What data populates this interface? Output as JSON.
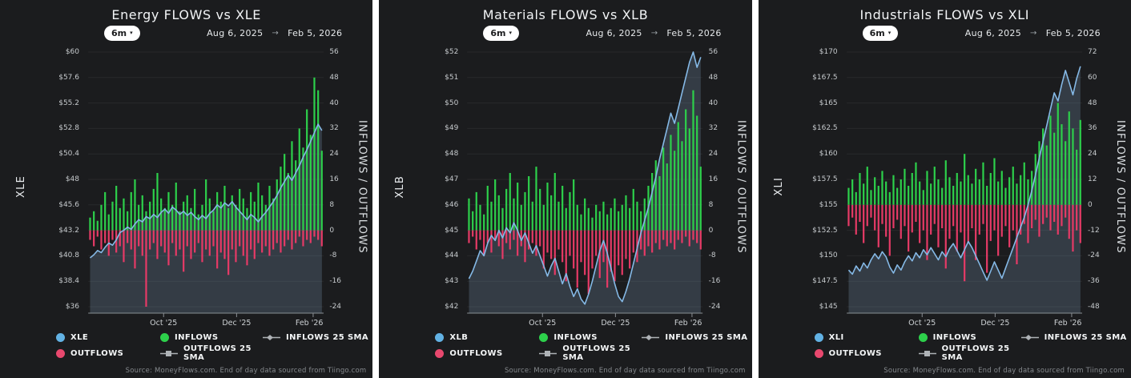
{
  "shared": {
    "range_label": "6m",
    "range_caret": "▾",
    "date_start": "Aug 6, 2025",
    "date_arrow": "→",
    "date_end": "Feb 5, 2026",
    "legend": {
      "inflows": "INFLOWS",
      "outflows": "OUTFLOWS",
      "inflows_sma": "INFLOWS 25 SMA",
      "outflows_sma": "OUTFLOWS 25 SMA"
    },
    "source_note": "Source: MoneyFlows.com. End of day data sourced from Tiingo.com",
    "colors": {
      "panel_bg": "#1b1c1e",
      "inflow_green": "#2dd04b",
      "outflow_pink": "#e63a66",
      "price_blue": "#85b9e6",
      "price_area": "rgba(139,176,211,0.22)",
      "grid": "rgba(255,255,255,0.06)",
      "axis_line": "#8a8f94",
      "legend_blue_dot": "#62b2e4",
      "sma_gray": "#aeb2b6"
    }
  },
  "chart_data": [
    {
      "type": "bar+line",
      "title": "Energy FLOWS vs XLE",
      "symbol": "XLE",
      "left_axis": {
        "title": "XLE",
        "min": 36,
        "max": 60,
        "tick_labels": [
          "$60",
          "$57.6",
          "$55.2",
          "$52.8",
          "$50.4",
          "$48",
          "$45.6",
          "$43.2",
          "$40.8",
          "$38.4",
          "$36"
        ]
      },
      "right_axis": {
        "title": "INFLOWS / OUTFLOWS",
        "min": -24,
        "max": 56,
        "tick_labels": [
          "56",
          "48",
          "40",
          "32",
          "24",
          "16",
          "8",
          "0",
          "-8",
          "-16",
          "-24"
        ]
      },
      "x_axis": {
        "tick_labels": [
          "Oct '25",
          "Dec '25",
          "Feb '26"
        ],
        "tick_positions": [
          0.32,
          0.63,
          0.955
        ]
      },
      "series": {
        "price": [
          40.6,
          40.9,
          41.3,
          41.1,
          41.6,
          42.0,
          41.8,
          42.3,
          43.0,
          43.2,
          43.5,
          43.3,
          43.8,
          44.2,
          44.0,
          44.5,
          44.3,
          44.7,
          44.4,
          44.9,
          45.2,
          44.8,
          45.4,
          45.1,
          44.7,
          45.0,
          44.6,
          44.9,
          44.5,
          44.2,
          44.6,
          44.3,
          44.8,
          45.1,
          45.6,
          45.3,
          45.8,
          45.5,
          45.9,
          45.4,
          45.0,
          44.6,
          44.2,
          44.7,
          44.4,
          44.0,
          44.5,
          44.9,
          45.4,
          45.9,
          46.5,
          47.2,
          47.8,
          48.4,
          47.9,
          48.6,
          49.3,
          50.1,
          50.8,
          51.6,
          52.4,
          53.2,
          52.6
        ],
        "inflows": [
          4,
          6,
          3,
          8,
          12,
          5,
          9,
          14,
          7,
          10,
          6,
          12,
          16,
          8,
          11,
          6,
          9,
          13,
          18,
          10,
          7,
          12,
          8,
          15,
          6,
          9,
          11,
          7,
          13,
          5,
          8,
          16,
          10,
          6,
          12,
          9,
          14,
          7,
          11,
          8,
          13,
          10,
          7,
          12,
          9,
          15,
          11,
          8,
          14,
          10,
          16,
          20,
          24,
          18,
          28,
          22,
          32,
          26,
          38,
          30,
          48,
          44,
          25
        ],
        "outflows": [
          -3,
          -5,
          -2,
          -6,
          -4,
          -8,
          -3,
          -7,
          -5,
          -10,
          -4,
          -6,
          -12,
          -5,
          -8,
          -24,
          -6,
          -4,
          -9,
          -5,
          -7,
          -11,
          -4,
          -8,
          -6,
          -13,
          -5,
          -9,
          -7,
          -4,
          -10,
          -6,
          -8,
          -5,
          -12,
          -7,
          -9,
          -14,
          -6,
          -10,
          -5,
          -8,
          -11,
          -6,
          -9,
          -4,
          -7,
          -5,
          -8,
          -6,
          -4,
          -7,
          -5,
          -3,
          -6,
          -4,
          -2,
          -5,
          -3,
          -4,
          -2,
          -3,
          -5
        ]
      }
    },
    {
      "type": "bar+line",
      "title": "Materials FLOWS vs XLB",
      "symbol": "XLB",
      "left_axis": {
        "title": "XLB",
        "min": 42,
        "max": 52,
        "tick_labels": [
          "$52",
          "$51",
          "$50",
          "$49",
          "$48",
          "$47",
          "$46",
          "$45",
          "$44",
          "$43",
          "$42"
        ]
      },
      "right_axis": {
        "title": "INFLOWS / OUTFLOWS",
        "min": -24,
        "max": 56,
        "tick_labels": [
          "56",
          "48",
          "40",
          "32",
          "24",
          "16",
          "8",
          "0",
          "-8",
          "-16",
          "-24"
        ]
      },
      "x_axis": {
        "tick_labels": [
          "Oct '25",
          "Dec '25",
          "Feb '26"
        ],
        "tick_positions": [
          0.32,
          0.63,
          0.955
        ]
      },
      "series": {
        "price": [
          43.1,
          43.4,
          43.8,
          44.2,
          44.0,
          44.5,
          44.8,
          44.6,
          45.0,
          44.7,
          45.1,
          44.9,
          45.3,
          45.0,
          44.6,
          44.9,
          44.5,
          44.1,
          44.4,
          44.0,
          43.6,
          43.2,
          43.6,
          43.9,
          43.4,
          42.9,
          43.3,
          42.8,
          42.4,
          42.7,
          42.3,
          42.1,
          42.5,
          43.0,
          43.6,
          44.2,
          44.6,
          44.1,
          43.5,
          42.9,
          42.4,
          42.2,
          42.6,
          43.1,
          43.7,
          44.3,
          44.9,
          45.4,
          45.9,
          46.5,
          47.1,
          47.8,
          48.4,
          49.0,
          49.6,
          49.2,
          49.8,
          50.4,
          51.0,
          51.6,
          52.0,
          51.4,
          51.8
        ],
        "inflows": [
          10,
          6,
          12,
          8,
          5,
          14,
          9,
          16,
          11,
          7,
          13,
          18,
          10,
          15,
          8,
          12,
          17,
          9,
          20,
          13,
          8,
          15,
          11,
          18,
          9,
          14,
          7,
          12,
          16,
          8,
          5,
          10,
          7,
          4,
          8,
          6,
          9,
          5,
          7,
          10,
          6,
          8,
          11,
          7,
          13,
          9,
          6,
          10,
          14,
          18,
          22,
          17,
          26,
          21,
          30,
          25,
          34,
          28,
          38,
          32,
          44,
          36,
          20
        ],
        "outflows": [
          -4,
          -2,
          -6,
          -3,
          -8,
          -4,
          -7,
          -3,
          -5,
          -9,
          -4,
          -6,
          -3,
          -8,
          -5,
          -10,
          -6,
          -4,
          -8,
          -5,
          -12,
          -7,
          -9,
          -14,
          -6,
          -10,
          -16,
          -8,
          -12,
          -18,
          -10,
          -14,
          -20,
          -12,
          -8,
          -15,
          -10,
          -18,
          -13,
          -16,
          -11,
          -14,
          -9,
          -12,
          -7,
          -10,
          -6,
          -8,
          -5,
          -7,
          -4,
          -6,
          -3,
          -5,
          -4,
          -6,
          -3,
          -4,
          -2,
          -5,
          -3,
          -4,
          -6
        ]
      }
    },
    {
      "type": "bar+line",
      "title": "Industrials FLOWS vs XLI",
      "symbol": "XLI",
      "left_axis": {
        "title": "XLI",
        "min": 145,
        "max": 170,
        "tick_labels": [
          "$170",
          "$167.5",
          "$165",
          "$162.5",
          "$160",
          "$157.5",
          "$155",
          "$152.5",
          "$150",
          "$147.5",
          "$145"
        ]
      },
      "right_axis": {
        "title": "INFLOWS / OUTFLOWS",
        "min": -48,
        "max": 72,
        "tick_labels": [
          "72",
          "60",
          "48",
          "36",
          "24",
          "12",
          "0",
          "-12",
          "-24",
          "-36",
          "-48"
        ]
      },
      "x_axis": {
        "tick_labels": [
          "Oct '25",
          "Dec '25",
          "Feb '26"
        ],
        "tick_positions": [
          0.32,
          0.63,
          0.955
        ]
      },
      "series": {
        "price": [
          148.6,
          148.2,
          149.0,
          148.5,
          149.3,
          148.8,
          149.6,
          150.2,
          149.7,
          150.4,
          149.9,
          148.9,
          148.3,
          149.1,
          148.6,
          149.4,
          150.0,
          149.5,
          150.3,
          149.8,
          150.6,
          150.1,
          150.8,
          150.2,
          149.6,
          150.4,
          149.9,
          150.7,
          151.2,
          150.5,
          149.8,
          150.6,
          151.4,
          150.8,
          150.0,
          149.2,
          148.4,
          147.6,
          148.5,
          149.4,
          148.6,
          147.8,
          148.8,
          149.8,
          150.8,
          151.8,
          152.8,
          153.8,
          155.0,
          156.4,
          158.0,
          159.6,
          161.2,
          162.8,
          164.4,
          166.0,
          165.2,
          166.8,
          168.2,
          167.0,
          165.8,
          167.4,
          168.6
        ],
        "inflows": [
          8,
          12,
          6,
          15,
          10,
          18,
          7,
          13,
          9,
          16,
          11,
          6,
          14,
          8,
          12,
          17,
          9,
          15,
          20,
          11,
          7,
          16,
          10,
          18,
          12,
          8,
          21,
          13,
          9,
          15,
          11,
          24,
          14,
          10,
          17,
          12,
          20,
          9,
          15,
          22,
          11,
          16,
          8,
          13,
          18,
          10,
          14,
          20,
          12,
          16,
          24,
          30,
          36,
          28,
          42,
          34,
          48,
          38,
          30,
          44,
          36,
          26,
          40
        ],
        "outflows": [
          -10,
          -6,
          -14,
          -8,
          -18,
          -10,
          -6,
          -12,
          -20,
          -9,
          -15,
          -24,
          -11,
          -7,
          -16,
          -10,
          -22,
          -13,
          -8,
          -18,
          -12,
          -26,
          -14,
          -9,
          -20,
          -11,
          -30,
          -16,
          -10,
          -22,
          -13,
          -36,
          -18,
          -11,
          -26,
          -14,
          -9,
          -32,
          -17,
          -12,
          -24,
          -15,
          -10,
          -20,
          -12,
          -28,
          -14,
          -9,
          -18,
          -11,
          -7,
          -15,
          -9,
          -6,
          -12,
          -8,
          -14,
          -10,
          -6,
          -16,
          -22,
          -12,
          -18
        ]
      }
    }
  ]
}
